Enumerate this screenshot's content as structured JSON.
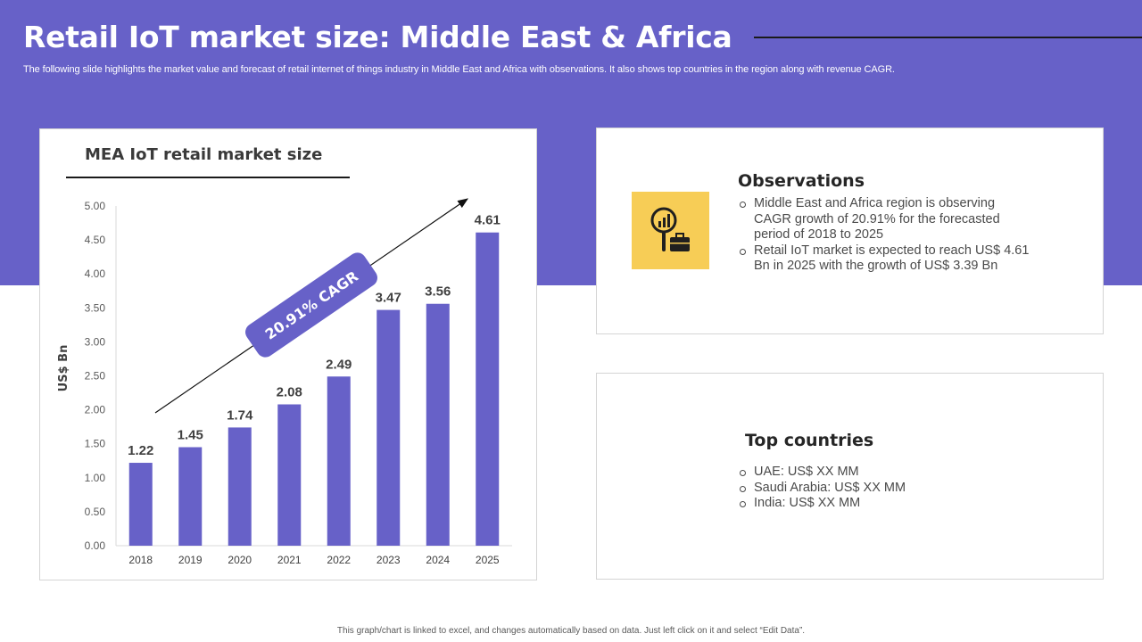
{
  "header": {
    "title": "Retail IoT market size: Middle East & Africa",
    "subtitle": "The following slide highlights the market value and forecast of retail internet of things industry in Middle East and Africa with observations. It also shows top countries in the region along with revenue CAGR."
  },
  "colors": {
    "band": "#6761c8",
    "bar": "#6761c8",
    "icon_bg": "#f7cd56"
  },
  "chart_panel": {
    "title": "MEA IoT retail market size"
  },
  "chart_data": {
    "type": "bar",
    "title": "MEA IoT retail market size",
    "categories": [
      "2018",
      "2019",
      "2020",
      "2021",
      "2022",
      "2023",
      "2024",
      "2025"
    ],
    "values": [
      1.22,
      1.45,
      1.74,
      2.08,
      2.49,
      3.47,
      3.56,
      4.61
    ],
    "value_labels": [
      "1.22",
      "1.45",
      "1.74",
      "2.08",
      "2.49",
      "3.47",
      "3.56",
      "4.61"
    ],
    "ylabel": "US$ Bn",
    "xlabel": "",
    "ylim": [
      0,
      5
    ],
    "yticks": [
      "0.00",
      "0.50",
      "1.00",
      "1.50",
      "2.00",
      "2.50",
      "3.00",
      "3.50",
      "4.00",
      "4.50",
      "5.00"
    ],
    "annotation": "20.91% CAGR"
  },
  "observations": {
    "icon": "analytics-briefcase-icon",
    "heading": "Observations",
    "items": [
      "Middle East and Africa region is observing CAGR growth of 20.91% for the forecasted period of 2018 to 2025",
      "Retail IoT market is expected to reach US$ 4.61 Bn in 2025 with the growth of US$ 3.39 Bn"
    ]
  },
  "top_countries": {
    "heading": "Top countries",
    "items": [
      "UAE: US$ XX MM",
      "Saudi Arabia: US$ XX MM",
      "India: US$ XX MM"
    ]
  },
  "footer": "This graph/chart is linked to excel, and changes automatically based on data. Just left click on it and select “Edit Data”."
}
